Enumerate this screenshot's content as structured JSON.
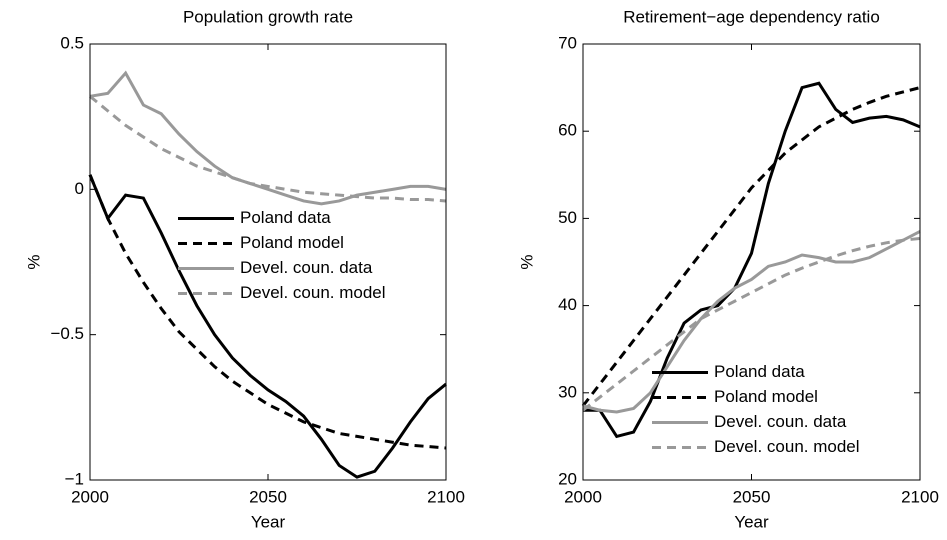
{
  "chart_data": [
    {
      "type": "line",
      "title": "Population growth rate",
      "xlabel": "Year",
      "ylabel": "%",
      "x": [
        2000,
        2005,
        2010,
        2015,
        2020,
        2025,
        2030,
        2035,
        2040,
        2045,
        2050,
        2055,
        2060,
        2065,
        2070,
        2075,
        2080,
        2085,
        2090,
        2095,
        2100
      ],
      "xlim": [
        2000,
        2100
      ],
      "xticks": [
        2000,
        2050,
        2100
      ],
      "ylim": [
        -1,
        0.5
      ],
      "yticks": [
        {
          "value": -1,
          "label": "−1"
        },
        {
          "value": -0.5,
          "label": "−0.5"
        },
        0,
        0.5
      ],
      "legend": "center right",
      "series": [
        {
          "name": "Poland data",
          "color": "#000000",
          "linestyle": "solid",
          "values": [
            0.05,
            -0.1,
            -0.02,
            -0.03,
            -0.15,
            -0.28,
            -0.4,
            -0.5,
            -0.58,
            -0.64,
            -0.69,
            -0.73,
            -0.78,
            -0.86,
            -0.95,
            -0.99,
            -0.97,
            -0.89,
            -0.8,
            -0.72,
            -0.67
          ]
        },
        {
          "name": "Poland model",
          "color": "#000000",
          "linestyle": "dashed",
          "values": [
            0.05,
            -0.1,
            -0.22,
            -0.32,
            -0.41,
            -0.49,
            -0.55,
            -0.61,
            -0.66,
            -0.7,
            -0.74,
            -0.77,
            -0.8,
            -0.82,
            -0.84,
            -0.85,
            -0.86,
            -0.87,
            -0.88,
            -0.885,
            -0.89
          ]
        },
        {
          "name": "Devel. coun. data",
          "color": "#999999",
          "linestyle": "solid",
          "values": [
            0.32,
            0.33,
            0.4,
            0.29,
            0.26,
            0.19,
            0.13,
            0.08,
            0.04,
            0.02,
            0.0,
            -0.02,
            -0.04,
            -0.05,
            -0.04,
            -0.02,
            -0.01,
            0.0,
            0.01,
            0.01,
            0.0
          ]
        },
        {
          "name": "Devel. coun. model",
          "color": "#999999",
          "linestyle": "dashed",
          "values": [
            0.32,
            0.27,
            0.22,
            0.18,
            0.14,
            0.11,
            0.08,
            0.06,
            0.04,
            0.02,
            0.01,
            0.0,
            -0.01,
            -0.015,
            -0.02,
            -0.025,
            -0.03,
            -0.03,
            -0.035,
            -0.035,
            -0.04
          ]
        }
      ]
    },
    {
      "type": "line",
      "title": "Retirement−age dependency ratio",
      "xlabel": "Year",
      "ylabel": "%",
      "x": [
        2000,
        2005,
        2010,
        2015,
        2020,
        2025,
        2030,
        2035,
        2040,
        2045,
        2050,
        2055,
        2060,
        2065,
        2070,
        2075,
        2080,
        2085,
        2090,
        2095,
        2100
      ],
      "xlim": [
        2000,
        2100
      ],
      "xticks": [
        2000,
        2050,
        2100
      ],
      "ylim": [
        20,
        70
      ],
      "yticks": [
        20,
        30,
        40,
        50,
        60,
        70
      ],
      "legend": "lower right",
      "series": [
        {
          "name": "Poland data",
          "color": "#000000",
          "linestyle": "solid",
          "values": [
            28,
            28,
            25,
            25.5,
            29,
            34,
            38,
            39.5,
            40,
            42,
            46,
            54,
            60,
            65,
            65.5,
            62.5,
            61,
            61.5,
            61.7,
            61.3,
            60.5
          ]
        },
        {
          "name": "Poland model",
          "color": "#000000",
          "linestyle": "dashed",
          "values": [
            28.5,
            31,
            33.5,
            36,
            38.5,
            41,
            43.5,
            46,
            48.5,
            51,
            53.5,
            55.5,
            57.5,
            59,
            60.5,
            61.5,
            62.5,
            63.3,
            64,
            64.5,
            65
          ]
        },
        {
          "name": "Devel. coun. data",
          "color": "#999999",
          "linestyle": "solid",
          "values": [
            28.5,
            28,
            27.8,
            28.2,
            30,
            33,
            36,
            38.5,
            40.5,
            42,
            43,
            44.5,
            45,
            45.8,
            45.5,
            45,
            45,
            45.5,
            46.5,
            47.5,
            48.5
          ]
        },
        {
          "name": "Devel. coun. model",
          "color": "#999999",
          "linestyle": "dashed",
          "values": [
            28,
            29.5,
            31,
            32.5,
            34,
            35.5,
            37,
            38.5,
            39.5,
            40.5,
            41.5,
            42.5,
            43.5,
            44.3,
            45,
            45.7,
            46.3,
            46.8,
            47.2,
            47.5,
            47.7
          ]
        }
      ]
    }
  ]
}
